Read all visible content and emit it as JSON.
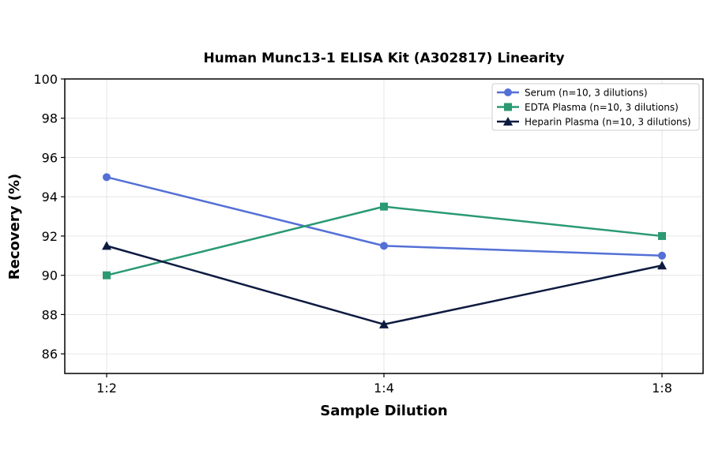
{
  "chart_data": {
    "type": "line",
    "title": "Human Munc13-1 ELISA Kit (A302817) Linearity",
    "xlabel": "Sample Dilution",
    "ylabel": "Recovery (%)",
    "categories": [
      "1:2",
      "1:4",
      "1:8"
    ],
    "ylim": [
      85,
      100
    ],
    "yticks": [
      86,
      88,
      90,
      92,
      94,
      96,
      98,
      100
    ],
    "grid": true,
    "legend_position": "top-right",
    "series": [
      {
        "name": "Serum (n=10, 3 dilutions)",
        "values": [
          95.0,
          91.5,
          91.0
        ],
        "color": "#5470d6",
        "marker": "circle"
      },
      {
        "name": "EDTA Plasma (n=10, 3 dilutions)",
        "values": [
          90.0,
          93.5,
          92.0
        ],
        "color": "#2a9a72",
        "marker": "square"
      },
      {
        "name": "Heparin Plasma (n=10, 3 dilutions)",
        "values": [
          91.5,
          87.5,
          90.5
        ],
        "color": "#0d1a40",
        "marker": "triangle"
      }
    ]
  }
}
